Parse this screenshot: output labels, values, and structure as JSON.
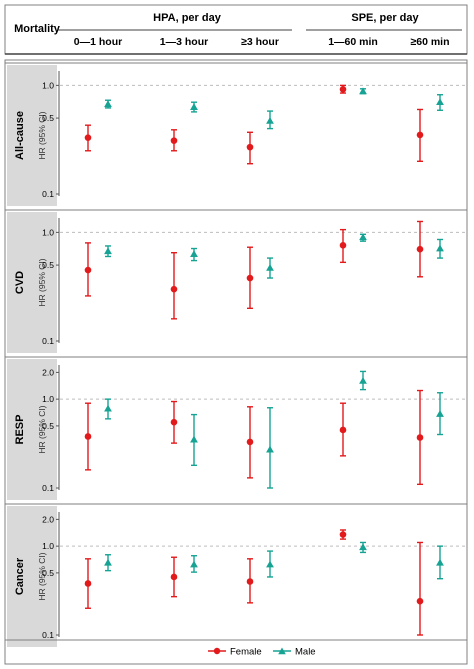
{
  "header": {
    "row_label": "Mortality",
    "group_hpa": "HPA, per day",
    "group_spe": "SPE, per day",
    "columns": [
      "0—1 hour",
      "1—3 hour",
      "≥3 hour",
      "1—60 min",
      "≥60 min"
    ]
  },
  "colors": {
    "female": "#e31a1c",
    "male": "#16a394",
    "grid": "#bdbdbd",
    "strip": "#d9d9d9",
    "frame": "#7f7f7f"
  },
  "legend": {
    "female": "Female",
    "male": "Male",
    "position": "bottom-center"
  },
  "chart_data": [
    {
      "type": "scatter",
      "panel": "All-cause",
      "ylabel": "HR (95% CI)",
      "y_scale": "log",
      "ylim": [
        0.1,
        1.3
      ],
      "yticks": [
        "0.1",
        "0.5",
        "1.0"
      ],
      "reference_line": 1.0,
      "categories": [
        "0—1 hour",
        "1—3 hour",
        "≥3 hour",
        "1—60 min",
        "≥60 min"
      ],
      "series": [
        {
          "name": "Female",
          "points": [
            {
              "hr": 0.33,
              "low": 0.25,
              "high": 0.43
            },
            {
              "hr": 0.31,
              "low": 0.25,
              "high": 0.39
            },
            {
              "hr": 0.27,
              "low": 0.19,
              "high": 0.37
            },
            {
              "hr": 0.92,
              "low": 0.85,
              "high": 1.0
            },
            {
              "hr": 0.35,
              "low": 0.2,
              "high": 0.6
            }
          ]
        },
        {
          "name": "Male",
          "points": [
            {
              "hr": 0.67,
              "low": 0.62,
              "high": 0.73
            },
            {
              "hr": 0.63,
              "low": 0.57,
              "high": 0.7
            },
            {
              "hr": 0.47,
              "low": 0.4,
              "high": 0.58
            },
            {
              "hr": 0.88,
              "low": 0.84,
              "high": 0.93
            },
            {
              "hr": 0.7,
              "low": 0.59,
              "high": 0.82
            }
          ]
        }
      ]
    },
    {
      "type": "scatter",
      "panel": "CVD",
      "ylabel": "HR (95% CI)",
      "y_scale": "log",
      "ylim": [
        0.1,
        1.3
      ],
      "yticks": [
        "0.1",
        "0.5",
        "1.0"
      ],
      "reference_line": 1.0,
      "categories": [
        "0—1 hour",
        "1—3 hour",
        "≥3 hour",
        "1—60 min",
        "≥60 min"
      ],
      "series": [
        {
          "name": "Female",
          "points": [
            {
              "hr": 0.45,
              "low": 0.26,
              "high": 0.8
            },
            {
              "hr": 0.3,
              "low": 0.16,
              "high": 0.65
            },
            {
              "hr": 0.38,
              "low": 0.2,
              "high": 0.73
            },
            {
              "hr": 0.76,
              "low": 0.53,
              "high": 1.06
            },
            {
              "hr": 0.7,
              "low": 0.39,
              "high": 1.26
            }
          ]
        },
        {
          "name": "Male",
          "points": [
            {
              "hr": 0.67,
              "low": 0.6,
              "high": 0.75
            },
            {
              "hr": 0.63,
              "low": 0.55,
              "high": 0.71
            },
            {
              "hr": 0.47,
              "low": 0.38,
              "high": 0.58
            },
            {
              "hr": 0.9,
              "low": 0.83,
              "high": 0.96
            },
            {
              "hr": 0.71,
              "low": 0.58,
              "high": 0.86
            }
          ]
        }
      ]
    },
    {
      "type": "scatter",
      "panel": "RESP",
      "ylabel": "HR (95% CI)",
      "y_scale": "log",
      "ylim": [
        0.1,
        2.3
      ],
      "yticks": [
        "0.1",
        "0.5",
        "1.0",
        "2.0"
      ],
      "reference_line": 1.0,
      "categories": [
        "0—1 hour",
        "1—3 hour",
        "≥3 hour",
        "1—60 min",
        "≥60 min"
      ],
      "series": [
        {
          "name": "Female",
          "points": [
            {
              "hr": 0.38,
              "low": 0.16,
              "high": 0.9
            },
            {
              "hr": 0.55,
              "low": 0.32,
              "high": 0.94
            },
            {
              "hr": 0.33,
              "low": 0.13,
              "high": 0.82
            },
            {
              "hr": 0.45,
              "low": 0.23,
              "high": 0.9
            },
            {
              "hr": 0.37,
              "low": 0.11,
              "high": 1.25
            }
          ]
        },
        {
          "name": "Male",
          "points": [
            {
              "hr": 0.78,
              "low": 0.6,
              "high": 1.0
            },
            {
              "hr": 0.35,
              "low": 0.18,
              "high": 0.67
            },
            {
              "hr": 0.27,
              "low": 0.1,
              "high": 0.8
            },
            {
              "hr": 1.6,
              "low": 1.28,
              "high": 2.05
            },
            {
              "hr": 0.68,
              "low": 0.4,
              "high": 1.18
            }
          ]
        }
      ]
    },
    {
      "type": "scatter",
      "panel": "Cancer",
      "ylabel": "HR (95% CI)",
      "y_scale": "log",
      "ylim": [
        0.1,
        2.3
      ],
      "yticks": [
        "0.1",
        "0.5",
        "1.0",
        "2.0"
      ],
      "reference_line": 1.0,
      "categories": [
        "0—1 hour",
        "1—3 hour",
        "≥3 hour",
        "1—60 min",
        "≥60 min"
      ],
      "series": [
        {
          "name": "Female",
          "points": [
            {
              "hr": 0.38,
              "low": 0.2,
              "high": 0.72
            },
            {
              "hr": 0.45,
              "low": 0.27,
              "high": 0.75
            },
            {
              "hr": 0.4,
              "low": 0.23,
              "high": 0.72
            },
            {
              "hr": 1.35,
              "low": 1.2,
              "high": 1.52
            },
            {
              "hr": 0.24,
              "low": 0.1,
              "high": 1.1
            }
          ]
        },
        {
          "name": "Male",
          "points": [
            {
              "hr": 0.65,
              "low": 0.53,
              "high": 0.8
            },
            {
              "hr": 0.62,
              "low": 0.51,
              "high": 0.78
            },
            {
              "hr": 0.62,
              "low": 0.45,
              "high": 0.88
            },
            {
              "hr": 0.97,
              "low": 0.85,
              "high": 1.1
            },
            {
              "hr": 0.65,
              "low": 0.43,
              "high": 1.0
            }
          ]
        }
      ]
    }
  ]
}
